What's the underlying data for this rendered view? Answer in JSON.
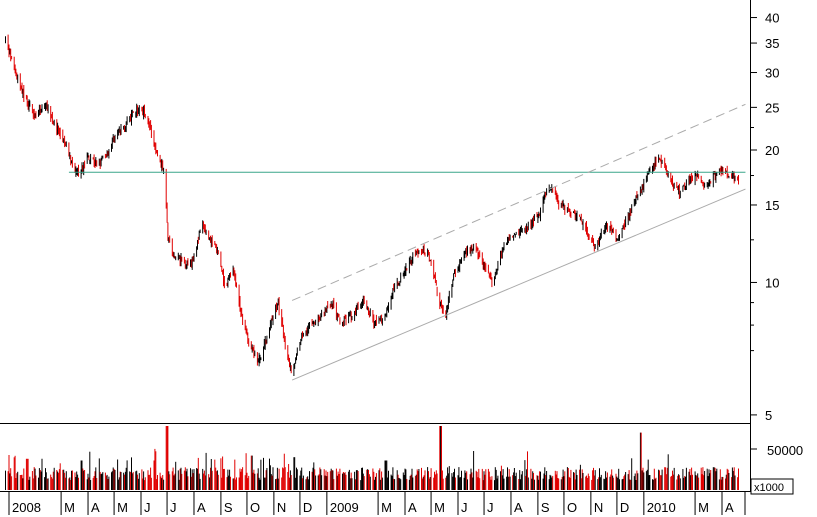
{
  "chart_data": {
    "type": "candlestick",
    "price_axis": {
      "scale": "log",
      "ylim": [
        4.6,
        43
      ],
      "ticks": [
        "40",
        "35",
        "30",
        "25",
        "20",
        "15",
        "10",
        "5"
      ]
    },
    "volume_axis": {
      "ticks": [
        "50000"
      ],
      "unit_label": "x1000"
    },
    "x_axis": {
      "tick_labels": [
        "2008",
        "M",
        "A",
        "M",
        "J",
        "J",
        "A",
        "S",
        "O",
        "N",
        "D",
        "2009",
        "M",
        "A",
        "M",
        "J",
        "J",
        "A",
        "S",
        "O",
        "N",
        "D",
        "2010",
        "M",
        "A"
      ],
      "tick_months": [
        "2008-01",
        "2008-03",
        "2008-04",
        "2008-05",
        "2008-06",
        "2008-07",
        "2008-08",
        "2008-09",
        "2008-10",
        "2008-11",
        "2008-12",
        "2009-01",
        "2009-03",
        "2009-04",
        "2009-05",
        "2009-06",
        "2009-07",
        "2009-08",
        "2009-09",
        "2009-10",
        "2009-11",
        "2009-12",
        "2010-01",
        "2010-03",
        "2010-04"
      ]
    },
    "colors": {
      "up": "#000000",
      "down": "#e00000",
      "horizontal_line": "#3aa58a",
      "channel": "#aaaaaa"
    },
    "price_path": [
      [
        "2007-12-28",
        35.5
      ],
      [
        "2008-01-08",
        30
      ],
      [
        "2008-01-20",
        26
      ],
      [
        "2008-02-01",
        24
      ],
      [
        "2008-02-12",
        25.5
      ],
      [
        "2008-02-22",
        23
      ],
      [
        "2008-03-04",
        21
      ],
      [
        "2008-03-14",
        18.5
      ],
      [
        "2008-03-22",
        17.5
      ],
      [
        "2008-04-01",
        19.5
      ],
      [
        "2008-04-12",
        18.5
      ],
      [
        "2008-04-22",
        19.5
      ],
      [
        "2008-05-02",
        21.5
      ],
      [
        "2008-05-12",
        22.5
      ],
      [
        "2008-05-22",
        24
      ],
      [
        "2008-06-01",
        25
      ],
      [
        "2008-06-09",
        23.5
      ],
      [
        "2008-06-16",
        20.5
      ],
      [
        "2008-06-24",
        18.5
      ],
      [
        "2008-06-28",
        18
      ],
      [
        "2008-07-02",
        12.8
      ],
      [
        "2008-07-08",
        11.5
      ],
      [
        "2008-07-18",
        11.2
      ],
      [
        "2008-07-28",
        11
      ],
      [
        "2008-08-06",
        12.5
      ],
      [
        "2008-08-10",
        13.6
      ],
      [
        "2008-08-20",
        12.5
      ],
      [
        "2008-08-30",
        11.5
      ],
      [
        "2008-09-06",
        9.5
      ],
      [
        "2008-09-14",
        11
      ],
      [
        "2008-09-24",
        8.5
      ],
      [
        "2008-10-04",
        7.2
      ],
      [
        "2008-10-14",
        6.6
      ],
      [
        "2008-10-24",
        7.5
      ],
      [
        "2008-11-01",
        8.6
      ],
      [
        "2008-11-06",
        9
      ],
      [
        "2008-11-14",
        7.2
      ],
      [
        "2008-11-22",
        6.2
      ],
      [
        "2008-12-02",
        7.5
      ],
      [
        "2008-12-12",
        8
      ],
      [
        "2008-12-26",
        8.4
      ],
      [
        "2009-01-06",
        9
      ],
      [
        "2009-01-18",
        8
      ],
      [
        "2009-01-30",
        8.4
      ],
      [
        "2009-02-12",
        9.2
      ],
      [
        "2009-02-24",
        8.1
      ],
      [
        "2009-03-06",
        8.2
      ],
      [
        "2009-03-18",
        9.5
      ],
      [
        "2009-03-30",
        10.5
      ],
      [
        "2009-04-10",
        11.5
      ],
      [
        "2009-04-22",
        11.8
      ],
      [
        "2009-05-02",
        11.2
      ],
      [
        "2009-05-10",
        9
      ],
      [
        "2009-05-18",
        8.5
      ],
      [
        "2009-05-28",
        10.5
      ],
      [
        "2009-06-08",
        11.5
      ],
      [
        "2009-06-20",
        12
      ],
      [
        "2009-06-30",
        11
      ],
      [
        "2009-07-10",
        10
      ],
      [
        "2009-07-20",
        11.5
      ],
      [
        "2009-07-30",
        12.8
      ],
      [
        "2009-08-10",
        13
      ],
      [
        "2009-08-22",
        13.5
      ],
      [
        "2009-09-01",
        14
      ],
      [
        "2009-09-10",
        16
      ],
      [
        "2009-09-16",
        16.5
      ],
      [
        "2009-09-26",
        15
      ],
      [
        "2009-10-08",
        14.5
      ],
      [
        "2009-10-18",
        14
      ],
      [
        "2009-10-28",
        13
      ],
      [
        "2009-11-06",
        12
      ],
      [
        "2009-11-14",
        13
      ],
      [
        "2009-11-22",
        13.5
      ],
      [
        "2009-12-02",
        12.5
      ],
      [
        "2009-12-12",
        13.8
      ],
      [
        "2009-12-22",
        15.5
      ],
      [
        "2009-12-30",
        16.5
      ],
      [
        "2010-01-08",
        18
      ],
      [
        "2010-01-16",
        19
      ],
      [
        "2010-01-26",
        18.2
      ],
      [
        "2010-02-04",
        16.5
      ],
      [
        "2010-02-12",
        16
      ],
      [
        "2010-02-20",
        17
      ],
      [
        "2010-03-02",
        17.5
      ],
      [
        "2010-03-12",
        16.5
      ],
      [
        "2010-03-22",
        17.5
      ],
      [
        "2010-04-01",
        18
      ],
      [
        "2010-04-10",
        17.5
      ],
      [
        "2010-04-20",
        17
      ]
    ],
    "volume_spikes": [
      [
        "2008-03-24",
        36000
      ],
      [
        "2008-07-01",
        78000
      ],
      [
        "2008-10-06",
        42000
      ],
      [
        "2008-11-24",
        40000
      ],
      [
        "2009-05-12",
        78000
      ],
      [
        "2009-12-28",
        70000
      ],
      [
        "2008-01-22",
        38000
      ],
      [
        "2009-03-10",
        36000
      ]
    ],
    "reference_lines": [
      {
        "kind": "horizontal",
        "value": 17.8,
        "from": "2008-03-10",
        "to": "2010-04-28"
      },
      {
        "kind": "channel_lower",
        "from": [
          "2008-11-22",
          6.0
        ],
        "to": [
          "2010-04-28",
          16.3
        ]
      },
      {
        "kind": "channel_upper",
        "from": [
          "2008-11-22",
          9.1
        ],
        "to": [
          "2010-04-28",
          25.4
        ]
      }
    ]
  }
}
